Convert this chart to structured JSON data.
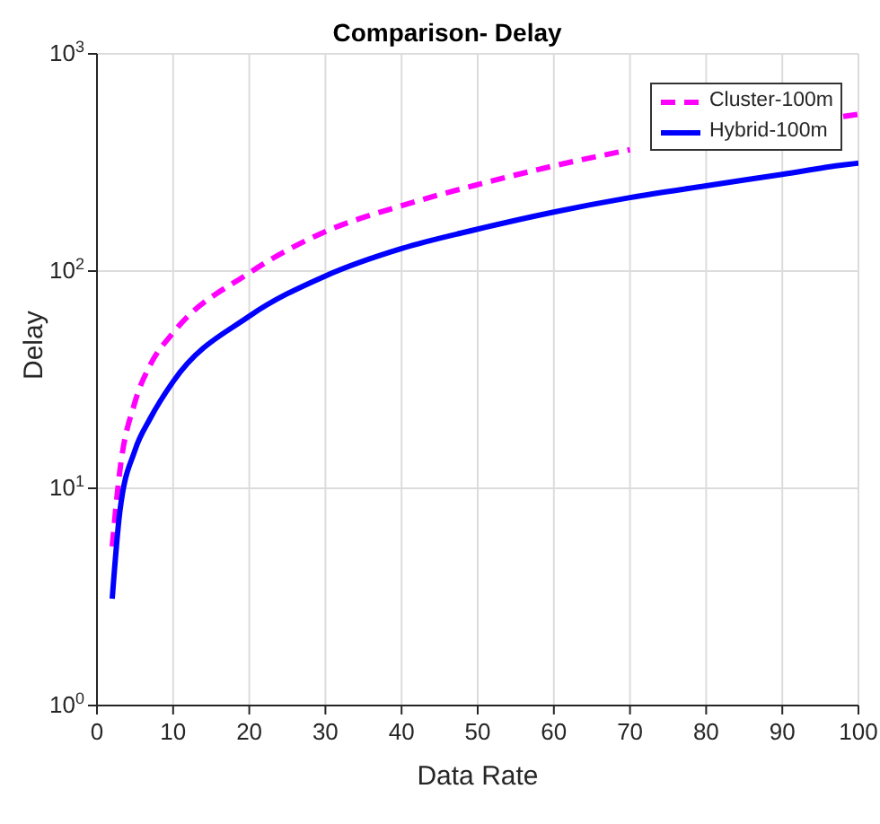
{
  "chart_data": {
    "type": "line",
    "title": "Comparison- Delay",
    "xlabel": "Data Rate",
    "ylabel": "Delay",
    "x": [
      2,
      3,
      5,
      7,
      10,
      20,
      30,
      40,
      50,
      60,
      70,
      80,
      90,
      98,
      100
    ],
    "series": [
      {
        "name": "Cluster-100m",
        "color": "#ff00ff",
        "line_style": "dashed",
        "values": [
          5.4,
          12,
          25,
          37,
          52,
          98,
          152,
          200,
          250,
          305,
          362,
          null,
          null,
          515,
          527
        ]
      },
      {
        "name": "Hybrid-100m",
        "color": "#0000ff",
        "line_style": "solid",
        "values": [
          3.1,
          7.8,
          15,
          21,
          31,
          62,
          95,
          127,
          156,
          187,
          218,
          247,
          279,
          308,
          314
        ]
      }
    ],
    "xlim": [
      0,
      100
    ],
    "xticks": [
      0,
      10,
      20,
      30,
      40,
      50,
      60,
      70,
      80,
      90,
      100
    ],
    "ylim": [
      1,
      1000
    ],
    "yticks": [
      {
        "value": 1,
        "label": "10$^{0}$"
      },
      {
        "value": 10,
        "label": "10$^{1}$"
      },
      {
        "value": 100,
        "label": "10$^{2}$"
      },
      {
        "value": 1000,
        "label": "10$^{3}$"
      }
    ],
    "log": "y",
    "grid": true,
    "legend": "top right",
    "marker": "none"
  }
}
